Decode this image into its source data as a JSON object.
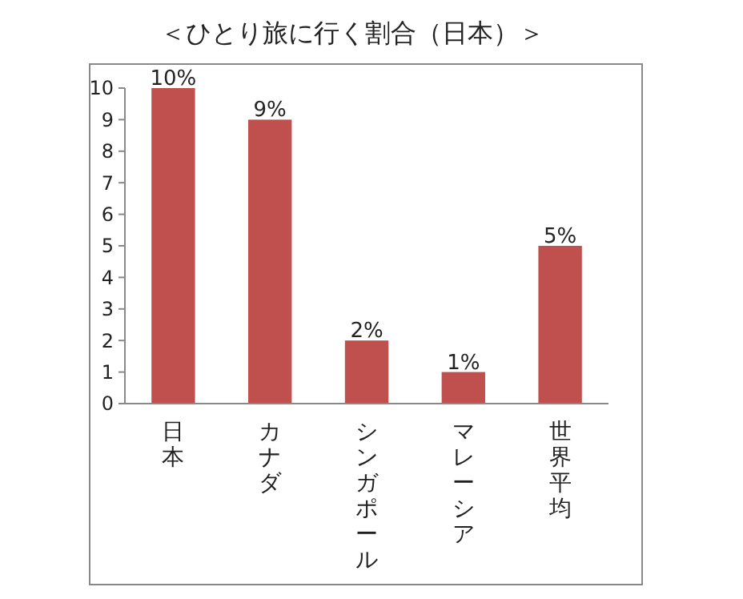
{
  "chart_data": {
    "type": "bar",
    "title": "＜ひとり旅に行く割合（日本）＞",
    "categories": [
      "日本",
      "カナダ",
      "シンガポール",
      "マレーシア",
      "世界平均"
    ],
    "values": [
      10,
      9,
      2,
      1,
      5
    ],
    "value_labels": [
      "10%",
      "9%",
      "2%",
      "1%",
      "5%"
    ],
    "color": "#c0504d",
    "ylim": [
      0,
      10
    ],
    "yticks": [
      0,
      1,
      2,
      3,
      4,
      5,
      6,
      7,
      8,
      9,
      10
    ]
  }
}
